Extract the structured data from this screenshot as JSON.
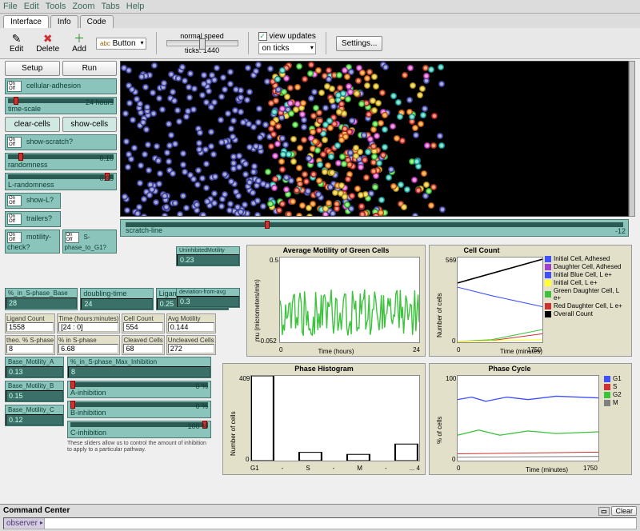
{
  "menu": {
    "items": [
      "File",
      "Edit",
      "Tools",
      "Zoom",
      "Tabs",
      "Help"
    ]
  },
  "tabs": [
    {
      "label": "Interface",
      "active": true
    },
    {
      "label": "Info"
    },
    {
      "label": "Code"
    }
  ],
  "toolbar": {
    "edit": "Edit",
    "delete": "Delete",
    "add": "Add",
    "button_combo": "Button",
    "speed_label": "normal speed",
    "ticks_label": "ticks:",
    "ticks_value": "1440",
    "view_updates": "view updates",
    "on_ticks": "on ticks",
    "settings": "Settings..."
  },
  "controls": {
    "setup": "Setup",
    "run": "Run",
    "cellular_adhesion": "cellular-adhesion",
    "time_scale": {
      "label": "time-scale",
      "value": "24 hours"
    },
    "clear_cells": "clear-cells",
    "show_cells": "show-cells",
    "show_scratch": "show-scratch?",
    "randomness": {
      "label": "randomness",
      "value": "0.10"
    },
    "L_randomness": {
      "label": "L-randomness",
      "value": "0.95"
    },
    "show_L": "show-L?",
    "trailers": "trailers?",
    "motility_check": "motility-check?",
    "s_phase_to_g1": "S-phase_to_G1?",
    "pct_sphase_base": {
      "label": "%_in_S-phase_Base",
      "value": "28"
    },
    "doubling_time": {
      "label": "doubling-time",
      "value": "24"
    },
    "ligand_speed": {
      "label": "LigandSpeed",
      "value": "0.25"
    },
    "uninhibited_motility": {
      "label": "UninhibitedMotility",
      "value": "0.23"
    },
    "deviation_from_avg": {
      "label": "deviation-from-avg",
      "value": "0.3"
    },
    "scratch_line": {
      "label": "scratch-line",
      "value": "-12"
    },
    "base_motility_a": {
      "label": "Base_Motility_A",
      "value": "0.13"
    },
    "base_motility_b": {
      "label": "Base_Motility_B",
      "value": "0.15"
    },
    "base_motility_c": {
      "label": "Base_Motility_C",
      "value": "0.12"
    },
    "pct_sphase_max": {
      "label": "%_in_S-phase_Max_Inhibition",
      "value": "8"
    },
    "a_inhibition": {
      "label": "A-inhibition",
      "value": "0 %"
    },
    "b_inhibition": {
      "label": "B-inhibition",
      "value": "0 %"
    },
    "c_inhibition": {
      "label": "C-inhibition",
      "value": "100 %"
    },
    "inhib_note": "These sliders allow us to control the amount of inhibition to apply to a particular pathway."
  },
  "monitors": {
    "ligand_count": {
      "label": "Ligand Count",
      "value": "1558"
    },
    "time_hm": {
      "label": "Time (hours:minutes)",
      "value": "[24 : 0]"
    },
    "cell_count": {
      "label": "Cell Count",
      "value": "554"
    },
    "avg_motility": {
      "label": "Avg Motility",
      "value": "0.144"
    },
    "theo_sphase": {
      "label": "theo. % S-phase",
      "value": "8"
    },
    "pct_sphase": {
      "label": "% in S-phase",
      "value": "6.68"
    },
    "cleaved": {
      "label": "Cleaved Cells",
      "value": "68"
    },
    "uncleaved": {
      "label": "Uncleaved Cells",
      "value": "272"
    }
  },
  "plots": {
    "motility": {
      "title": "Average Motility of Green Cells",
      "ylabel": "mu (micrometers/min)",
      "xlabel": "Time (hours)",
      "ymin": "-0.052",
      "ymax": "0.5",
      "xmin": "0",
      "xmax": "24",
      "line_color": "#3cc33c"
    },
    "cellcount": {
      "title": "Cell Count",
      "ylabel": "Number of cells",
      "xlabel": "Time (minutes)",
      "ymin": "0",
      "ymax": "569",
      "xmin": "0",
      "xmax": "1750",
      "legend": [
        {
          "label": "Initial Cell, Adhesed",
          "color": "#4050ff"
        },
        {
          "label": "Daughter Cell, Adhesed",
          "color": "#a040d0"
        },
        {
          "label": "Initial Blue Cell, L e+",
          "color": "#4050ff"
        },
        {
          "label": "Initial Cell, L e+",
          "color": "#ffff33"
        },
        {
          "label": "Green Daughter Cell, L e+",
          "color": "#3cc33c"
        },
        {
          "label": "Red Daughter Cell, L e+",
          "color": "#d03030"
        },
        {
          "label": "Overall Count",
          "color": "#000000"
        }
      ]
    },
    "histogram": {
      "title": "Phase Histogram",
      "ylabel": "Number of cells",
      "xlabel": "",
      "ymin": "0",
      "ymax": "409",
      "ticks": [
        "G1",
        "-",
        "S",
        "-",
        "M",
        "-",
        "... 4"
      ],
      "bars": [
        409,
        0,
        40,
        0,
        30,
        0,
        80
      ],
      "bar_color": "#000000"
    },
    "cycle": {
      "title": "Phase Cycle",
      "ylabel": "% of cells",
      "xlabel": "Time (minutes)",
      "ymin": "0",
      "ymax": "100",
      "xmin": "0",
      "xmax": "1750",
      "legend": [
        {
          "label": "G1",
          "color": "#4050ff"
        },
        {
          "label": "S",
          "color": "#d03030"
        },
        {
          "label": "G2",
          "color": "#3cc33c"
        },
        {
          "label": "M",
          "color": "#808080"
        }
      ]
    }
  },
  "cmd": {
    "title": "Command Center",
    "prompt": "observer",
    "clear": "Clear"
  },
  "colors": {
    "teal": "#8bc4bb",
    "teal_dark": "#3a7068",
    "cream": "#e2e0c8",
    "flowers": [
      "#5a60d0",
      "#4ae04a",
      "#e8c030",
      "#e050e0",
      "#30c8c8",
      "#e05030",
      "#e03838",
      "#ff8020"
    ]
  }
}
